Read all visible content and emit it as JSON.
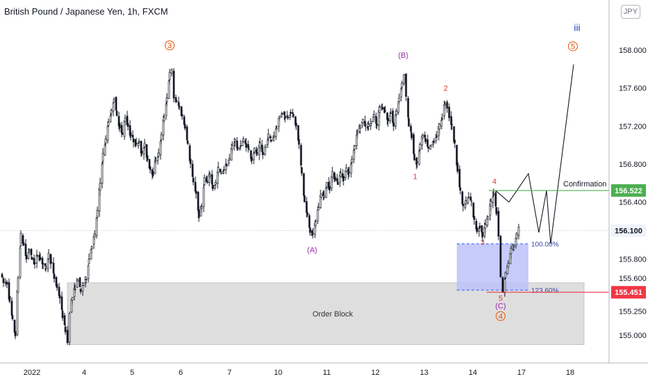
{
  "header": {
    "title": "British Pound / Japanese Yen, 1h, FXCM",
    "currency": "JPY"
  },
  "colors": {
    "candle": "#131722",
    "wave_orange": "#e65100",
    "wave_purple": "#9c27b0",
    "wave_red": "#e53935",
    "wave_blue": "#1e3fbf",
    "confirmation_line": "#4caf50",
    "support_line": "#f23645",
    "fib_box": "#bcc2fa",
    "order_block": "#d8d8d8",
    "label_green": "#4caf50",
    "label_red": "#f23645"
  },
  "chart_data": {
    "type": "candlestick",
    "symbol": "British Pound / Japanese Yen, 1h, FXCM",
    "ylim": [
      154.83,
      158.33
    ],
    "y_ticks": [
      {
        "label": "158.000",
        "value": 158.0
      },
      {
        "label": "157.600",
        "value": 157.6
      },
      {
        "label": "157.200",
        "value": 157.2
      },
      {
        "label": "156.800",
        "value": 156.8
      },
      {
        "label": "156.400",
        "value": 156.4
      },
      {
        "label": "155.800",
        "value": 155.8
      },
      {
        "label": "155.600",
        "value": 155.6
      },
      {
        "label": "155.250",
        "value": 155.25
      },
      {
        "label": "155.000",
        "value": 155.0
      }
    ],
    "x_ticks": [
      "2022",
      "4",
      "5",
      "6",
      "7",
      "10",
      "11",
      "12",
      "13",
      "14",
      "17",
      "18"
    ],
    "last_price": {
      "label": "156.100",
      "value": 156.1
    },
    "price_path": [
      [
        0,
        155.65
      ],
      [
        5,
        155.55
      ],
      [
        10,
        155.55
      ],
      [
        14,
        155.35
      ],
      [
        18,
        155.15
      ],
      [
        22,
        155.0
      ],
      [
        26,
        155.6
      ],
      [
        30,
        156.05
      ],
      [
        34,
        155.95
      ],
      [
        38,
        155.8
      ],
      [
        42,
        155.9
      ],
      [
        46,
        155.8
      ],
      [
        50,
        155.75
      ],
      [
        54,
        155.85
      ],
      [
        58,
        155.8
      ],
      [
        62,
        155.75
      ],
      [
        66,
        155.7
      ],
      [
        70,
        155.85
      ],
      [
        74,
        155.75
      ],
      [
        78,
        155.6
      ],
      [
        82,
        155.5
      ],
      [
        86,
        155.4
      ],
      [
        90,
        155.2
      ],
      [
        94,
        155.05
      ],
      [
        97,
        154.92
      ],
      [
        100,
        155.25
      ],
      [
        104,
        155.4
      ],
      [
        108,
        155.5
      ],
      [
        112,
        155.6
      ],
      [
        116,
        155.45
      ],
      [
        120,
        155.55
      ],
      [
        124,
        155.6
      ],
      [
        128,
        155.8
      ],
      [
        132,
        155.95
      ],
      [
        136,
        156.05
      ],
      [
        140,
        156.3
      ],
      [
        144,
        156.6
      ],
      [
        148,
        156.9
      ],
      [
        152,
        157.05
      ],
      [
        156,
        157.25
      ],
      [
        160,
        157.35
      ],
      [
        164,
        157.5
      ],
      [
        168,
        157.3
      ],
      [
        172,
        157.2
      ],
      [
        176,
        157.1
      ],
      [
        180,
        157.3
      ],
      [
        184,
        157.2
      ],
      [
        188,
        157.1
      ],
      [
        192,
        157.05
      ],
      [
        196,
        157.0
      ],
      [
        200,
        157.05
      ],
      [
        204,
        156.9
      ],
      [
        208,
        157.0
      ],
      [
        212,
        156.85
      ],
      [
        216,
        156.75
      ],
      [
        220,
        156.7
      ],
      [
        224,
        156.85
      ],
      [
        228,
        156.9
      ],
      [
        232,
        157.1
      ],
      [
        236,
        157.3
      ],
      [
        240,
        157.5
      ],
      [
        244,
        157.75
      ],
      [
        247,
        157.78
      ],
      [
        250,
        157.5
      ],
      [
        254,
        157.45
      ],
      [
        258,
        157.4
      ],
      [
        262,
        157.3
      ],
      [
        266,
        157.2
      ],
      [
        270,
        157.0
      ],
      [
        274,
        156.8
      ],
      [
        278,
        156.6
      ],
      [
        282,
        156.5
      ],
      [
        286,
        156.25
      ],
      [
        290,
        156.35
      ],
      [
        294,
        156.65
      ],
      [
        298,
        156.6
      ],
      [
        302,
        156.7
      ],
      [
        306,
        156.55
      ],
      [
        310,
        156.6
      ],
      [
        314,
        156.75
      ],
      [
        318,
        156.7
      ],
      [
        322,
        156.75
      ],
      [
        326,
        156.8
      ],
      [
        330,
        156.85
      ],
      [
        334,
        157.0
      ],
      [
        338,
        157.05
      ],
      [
        342,
        156.95
      ],
      [
        346,
        157.0
      ],
      [
        350,
        157.05
      ],
      [
        354,
        157.0
      ],
      [
        358,
        156.95
      ],
      [
        362,
        156.85
      ],
      [
        366,
        156.95
      ],
      [
        370,
        156.9
      ],
      [
        374,
        157.0
      ],
      [
        378,
        156.9
      ],
      [
        382,
        157.0
      ],
      [
        386,
        157.1
      ],
      [
        390,
        157.05
      ],
      [
        394,
        157.1
      ],
      [
        398,
        157.2
      ],
      [
        402,
        157.3
      ],
      [
        406,
        157.35
      ],
      [
        410,
        157.3
      ],
      [
        414,
        157.3
      ],
      [
        418,
        157.35
      ],
      [
        422,
        157.3
      ],
      [
        426,
        157.2
      ],
      [
        430,
        157.0
      ],
      [
        434,
        156.7
      ],
      [
        438,
        156.4
      ],
      [
        442,
        156.25
      ],
      [
        446,
        156.1
      ],
      [
        450,
        156.05
      ],
      [
        454,
        156.2
      ],
      [
        458,
        156.35
      ],
      [
        462,
        156.5
      ],
      [
        466,
        156.45
      ],
      [
        470,
        156.6
      ],
      [
        474,
        156.55
      ],
      [
        478,
        156.7
      ],
      [
        482,
        156.65
      ],
      [
        486,
        156.6
      ],
      [
        490,
        156.7
      ],
      [
        494,
        156.65
      ],
      [
        498,
        156.75
      ],
      [
        502,
        156.7
      ],
      [
        506,
        156.85
      ],
      [
        510,
        157.0
      ],
      [
        514,
        157.15
      ],
      [
        518,
        157.2
      ],
      [
        522,
        157.25
      ],
      [
        526,
        157.2
      ],
      [
        530,
        157.2
      ],
      [
        534,
        157.25
      ],
      [
        538,
        157.3
      ],
      [
        542,
        157.2
      ],
      [
        546,
        157.4
      ],
      [
        550,
        157.4
      ],
      [
        554,
        157.35
      ],
      [
        558,
        157.25
      ],
      [
        562,
        157.35
      ],
      [
        566,
        157.2
      ],
      [
        570,
        157.35
      ],
      [
        574,
        157.5
      ],
      [
        578,
        157.65
      ],
      [
        581,
        157.75
      ],
      [
        584,
        157.5
      ],
      [
        588,
        157.2
      ],
      [
        592,
        157.1
      ],
      [
        596,
        156.85
      ],
      [
        600,
        156.8
      ],
      [
        604,
        157.0
      ],
      [
        608,
        157.1
      ],
      [
        612,
        157.05
      ],
      [
        616,
        156.95
      ],
      [
        620,
        157.0
      ],
      [
        624,
        157.05
      ],
      [
        628,
        157.1
      ],
      [
        632,
        157.2
      ],
      [
        636,
        157.3
      ],
      [
        640,
        157.45
      ],
      [
        643,
        157.4
      ],
      [
        646,
        157.3
      ],
      [
        650,
        157.2
      ],
      [
        654,
        157.0
      ],
      [
        658,
        156.75
      ],
      [
        662,
        156.5
      ],
      [
        666,
        156.35
      ],
      [
        670,
        156.4
      ],
      [
        674,
        156.45
      ],
      [
        678,
        156.4
      ],
      [
        682,
        156.2
      ],
      [
        686,
        156.1
      ],
      [
        690,
        156.15
      ],
      [
        694,
        156.05
      ],
      [
        698,
        156.15
      ],
      [
        702,
        156.25
      ],
      [
        706,
        156.4
      ],
      [
        710,
        156.5
      ],
      [
        714,
        156.3
      ],
      [
        717,
        156.05
      ],
      [
        720,
        155.6
      ],
      [
        723,
        155.45
      ],
      [
        727,
        155.65
      ],
      [
        731,
        155.75
      ],
      [
        735,
        155.9
      ],
      [
        739,
        155.95
      ],
      [
        743,
        156.05
      ],
      [
        746,
        156.15
      ]
    ],
    "projection": [
      [
        713,
        156.52
      ],
      [
        732,
        156.4
      ],
      [
        760,
        156.7
      ],
      [
        775,
        156.08
      ],
      [
        786,
        156.52
      ],
      [
        792,
        155.96
      ],
      [
        825,
        157.85
      ]
    ],
    "levels": [
      {
        "name": "confirmation",
        "value": 156.522,
        "label": "156.522",
        "text": "Confirmation",
        "x_start": 703
      },
      {
        "name": "support",
        "value": 155.451,
        "label": "155.451",
        "x_start": 700
      }
    ],
    "fib_levels": [
      {
        "label": "100.00%",
        "value": 155.96
      },
      {
        "label": "123.60%",
        "value": 155.473
      }
    ],
    "order_block": {
      "label": "Order Block",
      "top": 155.55,
      "bottom": 154.9,
      "x_start": 97,
      "x_end": 840
    },
    "fib_box": {
      "top": 155.96,
      "bottom": 155.473,
      "x_start": 657,
      "x_end": 760
    },
    "wave_labels": [
      {
        "text": "3",
        "x": 244,
        "y": 158.05,
        "style": "circle",
        "color": "orange"
      },
      {
        "text": "(B)",
        "x": 580,
        "y": 157.95,
        "style": "plain",
        "color": "purple"
      },
      {
        "text": "2",
        "x": 641,
        "y": 157.6,
        "style": "plain",
        "color": "red"
      },
      {
        "text": "1",
        "x": 597,
        "y": 156.67,
        "style": "plain",
        "color": "red"
      },
      {
        "text": "4",
        "x": 711,
        "y": 156.62,
        "style": "plain",
        "color": "red"
      },
      {
        "text": "3",
        "x": 694,
        "y": 155.98,
        "style": "plain",
        "color": "red"
      },
      {
        "text": "(A)",
        "x": 449,
        "y": 155.9,
        "style": "plain",
        "color": "purple"
      },
      {
        "text": "5",
        "x": 720,
        "y": 155.39,
        "style": "plain",
        "color": "red"
      },
      {
        "text": "(C)",
        "x": 720,
        "y": 155.31,
        "style": "plain",
        "color": "purple"
      },
      {
        "text": "4",
        "x": 720,
        "y": 155.2,
        "style": "circle",
        "color": "orange"
      },
      {
        "text": "iii",
        "x": 830,
        "y": 158.23,
        "style": "plain",
        "color": "blue"
      },
      {
        "text": "5",
        "x": 824,
        "y": 158.04,
        "style": "circle",
        "color": "orange"
      }
    ]
  }
}
